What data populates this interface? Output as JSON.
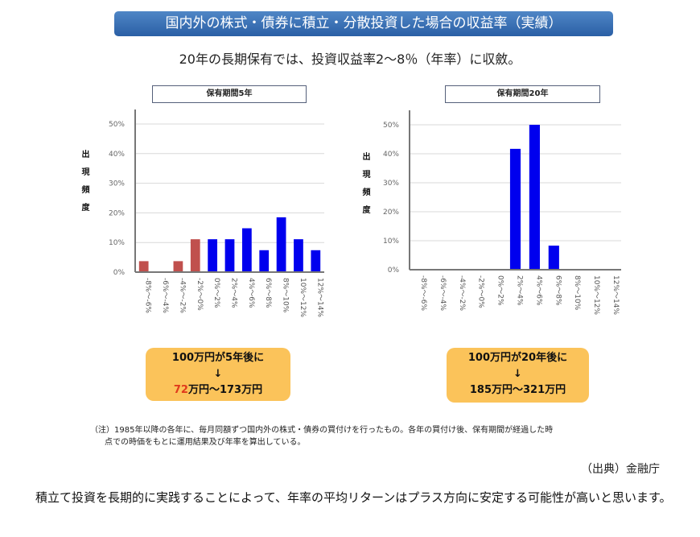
{
  "title": "国内外の株式・債券に積立・分散投資した場合の収益率（実績）",
  "subtitle": "20年の長期保有では、投資収益率2～8％（年率）に収斂。",
  "chart_data": [
    {
      "type": "bar",
      "title": "保有期間5年",
      "ylabel": "出現頻度",
      "ylabel_chars": [
        "出",
        "現",
        "頻",
        "度"
      ],
      "categories": [
        "-8%～-6%",
        "-6%～-4%",
        "-4%～-2%",
        "-2%～0%",
        "0%～2%",
        "2%～4%",
        "4%～6%",
        "6%～8%",
        "8%～10%",
        "10%～12%",
        "12%～14%"
      ],
      "values": [
        3.7,
        0,
        3.7,
        11.1,
        11.1,
        11.1,
        14.8,
        7.4,
        18.5,
        11.1,
        7.4
      ],
      "colors": [
        "#c0504d",
        "#c0504d",
        "#c0504d",
        "#c0504d",
        "#0000ee",
        "#0000ee",
        "#0000ee",
        "#0000ee",
        "#0000ee",
        "#0000ee",
        "#0000ee"
      ],
      "yticks": [
        "0%",
        "10%",
        "20%",
        "30%",
        "40%",
        "50%"
      ],
      "ylim": [
        0,
        50
      ],
      "grid": true
    },
    {
      "type": "bar",
      "title": "保有期間20年",
      "ylabel": "出現頻度",
      "ylabel_chars": [
        "出",
        "現",
        "頻",
        "度"
      ],
      "categories": [
        "-8%～-6%",
        "-6%～-4%",
        "-4%～-2%",
        "-2%～0%",
        "0%～2%",
        "2%～4%",
        "4%～6%",
        "6%～8%",
        "8%～10%",
        "10%～12%",
        "12%～14%"
      ],
      "values": [
        0,
        0,
        0,
        0,
        0,
        41.7,
        50,
        8.3,
        0,
        0,
        0
      ],
      "colors": [
        "#0000ee",
        "#0000ee",
        "#0000ee",
        "#0000ee",
        "#0000ee",
        "#0000ee",
        "#0000ee",
        "#0000ee",
        "#0000ee",
        "#0000ee",
        "#0000ee"
      ],
      "yticks": [
        "0%",
        "10%",
        "20%",
        "30%",
        "40%",
        "50%"
      ],
      "ylim": [
        0,
        50
      ],
      "grid": true
    }
  ],
  "results": [
    {
      "line1": "100万円が5年後に",
      "arrow": "↓",
      "low": "72",
      "rest": "万円～173万円",
      "low_color": "#e03a1c"
    },
    {
      "line1": "100万円が20年後に",
      "arrow": "↓",
      "low": "185",
      "rest": "万円～321万円"
    }
  ],
  "note": {
    "line1": "（注）1985年以降の各年に、毎月同額ずつ国内外の株式・債券の買付けを行ったもの。各年の買付け後、保有期間が経過した時",
    "line2": "点での時価をもとに運用結果及び年率を算出している。"
  },
  "source": "（出典）金融庁",
  "paragraph": "積立て投資を長期的に実践することによって、年率の平均リターンはプラス方向に安定する可能性が高いと思います。"
}
